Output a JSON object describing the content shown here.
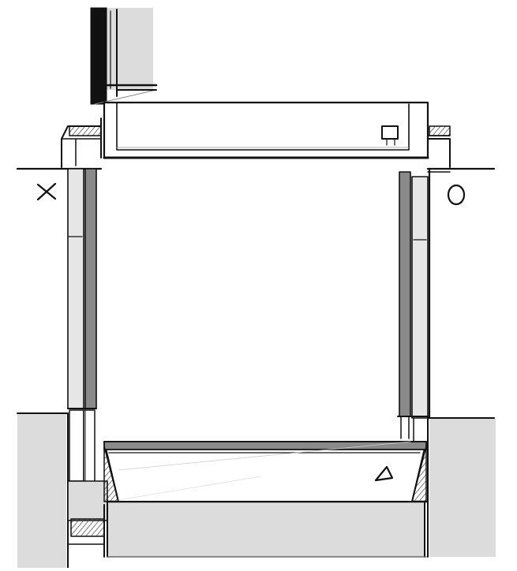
{
  "symbols": {
    "top": "□",
    "left": "×",
    "right": "○",
    "bottom": "△"
  },
  "colors": {
    "background": "#ffffff",
    "wall_fill": "#dcdcdc",
    "panel_light": "#e6e6e6",
    "rail_dark": "#8a8a8a",
    "ink": "#111111"
  }
}
